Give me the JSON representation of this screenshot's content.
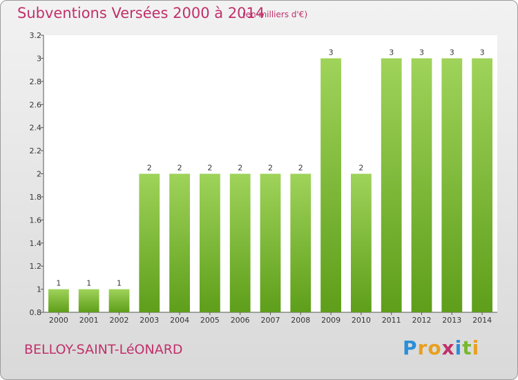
{
  "header": {
    "title": "Subventions Versées 2000 à 2014",
    "subtitle": "(en milliers d'€)"
  },
  "footer": {
    "commune": "BELLOY-SAINT-LéONARD",
    "logo_letters": [
      "P",
      "r",
      "o",
      "x",
      "i",
      "t",
      "i"
    ],
    "logo_colors": [
      "#2a8fd8",
      "#e8a020",
      "#e8a020",
      "#c0306a",
      "#2a8fd8",
      "#7ab82e",
      "#e8a020"
    ]
  },
  "chart_data": {
    "type": "bar",
    "categories": [
      "2000",
      "2001",
      "2002",
      "2003",
      "2004",
      "2005",
      "2006",
      "2007",
      "2008",
      "2009",
      "2010",
      "2011",
      "2012",
      "2013",
      "2014"
    ],
    "values": [
      1,
      1,
      1,
      2,
      2,
      2,
      2,
      2,
      2,
      3,
      2,
      3,
      3,
      3,
      3
    ],
    "data_labels": [
      "1",
      "1",
      "1",
      "2",
      "2",
      "2",
      "2",
      "2",
      "2",
      "3",
      "2",
      "3",
      "3",
      "3",
      "3"
    ],
    "title": "Subventions Versées 2000 à 2014",
    "xlabel": "",
    "ylabel": "",
    "ylim": [
      0.8,
      3.2
    ],
    "y_ticks": [
      0.8,
      1,
      1.2,
      1.4,
      1.6,
      1.8,
      2,
      2.2,
      2.4,
      2.6,
      2.8,
      3,
      3.2
    ],
    "y_tick_labels": [
      "0.8",
      "1",
      "1.2",
      "1.4",
      "1.6",
      "1.8",
      "2",
      "2.2",
      "2.4",
      "2.6",
      "2.8",
      "3",
      "3.2"
    ],
    "grid": false,
    "bar_color_top": "#9fd35a",
    "bar_color_bottom": "#5e9e1a"
  }
}
